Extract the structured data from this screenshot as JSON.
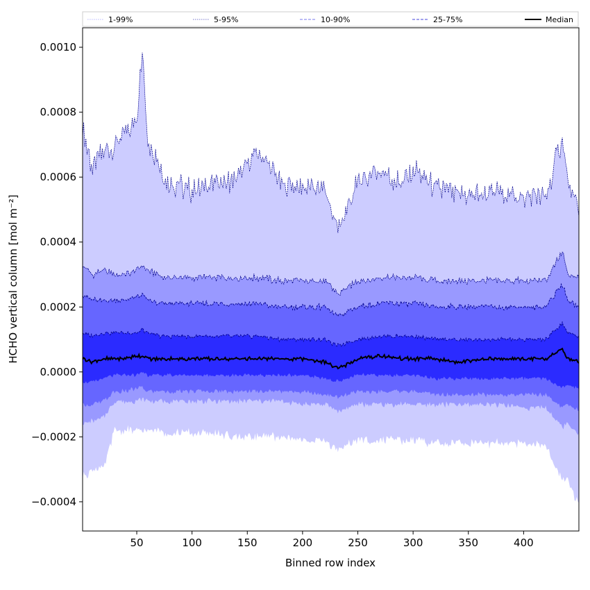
{
  "chart_data": {
    "type": "area",
    "xlabel": "Binned row index",
    "ylabel": "HCHO vertical column [mol m⁻²]",
    "xlim": [
      1,
      450
    ],
    "ylim": [
      -0.00049,
      0.00106
    ],
    "xticks": [
      50,
      100,
      150,
      200,
      250,
      300,
      350,
      400
    ],
    "xtick_labels": [
      "50",
      "100",
      "150",
      "200",
      "250",
      "300",
      "350",
      "400"
    ],
    "yticks": [
      -0.0004,
      -0.0002,
      0.0,
      0.0002,
      0.0004,
      0.0006,
      0.0008,
      0.001
    ],
    "ytick_labels": [
      "−0.0004",
      "−0.0002",
      "0.0000",
      "0.0002",
      "0.0004",
      "0.0006",
      "0.0008",
      "0.0010"
    ],
    "grid": false,
    "legend_position": "top",
    "colors": {
      "band_1_99": "#ccccff",
      "band_5_95": "#9999ff",
      "band_10_90": "#6666ff",
      "band_25_75": "#2b2bff",
      "line_5_95": "#00008b",
      "median": "#000000"
    },
    "legend": [
      {
        "label": "1-99%",
        "style": "dotted-light"
      },
      {
        "label": "5-95%",
        "style": "dotted-dark"
      },
      {
        "label": "10-90%",
        "style": "dashed-light"
      },
      {
        "label": "25-75%",
        "style": "dashed-dark"
      },
      {
        "label": "Median",
        "style": "solid"
      }
    ],
    "profile_x": [
      1,
      10,
      20,
      30,
      40,
      50,
      55,
      60,
      70,
      80,
      90,
      100,
      120,
      140,
      160,
      180,
      200,
      220,
      232,
      250,
      270,
      290,
      300,
      320,
      340,
      360,
      380,
      400,
      420,
      435,
      440,
      450
    ],
    "series": [
      {
        "name": "p99",
        "values": [
          0.00075,
          0.00062,
          0.00068,
          0.0007,
          0.00074,
          0.00078,
          0.00098,
          0.00072,
          0.00064,
          0.00058,
          0.00057,
          0.00056,
          0.00058,
          0.00059,
          0.00068,
          0.00058,
          0.00057,
          0.00056,
          0.00044,
          0.00058,
          0.00062,
          0.00058,
          0.00062,
          0.00057,
          0.00054,
          0.00055,
          0.00055,
          0.00054,
          0.00054,
          0.00072,
          0.00059,
          0.00049
        ]
      },
      {
        "name": "p95",
        "values": [
          0.00033,
          0.0003,
          0.00031,
          0.0003,
          0.0003,
          0.00031,
          0.00033,
          0.00031,
          0.0003,
          0.00029,
          0.00029,
          0.00029,
          0.00029,
          0.00029,
          0.00029,
          0.00028,
          0.00028,
          0.00028,
          0.00024,
          0.00028,
          0.00029,
          0.00029,
          0.00029,
          0.00028,
          0.00028,
          0.00028,
          0.00028,
          0.00028,
          0.00028,
          0.00037,
          0.0003,
          0.00029
        ]
      },
      {
        "name": "p90",
        "values": [
          0.00024,
          0.00022,
          0.00022,
          0.00022,
          0.00022,
          0.00023,
          0.00024,
          0.00022,
          0.00021,
          0.00021,
          0.00021,
          0.00021,
          0.00021,
          0.00021,
          0.00021,
          0.0002,
          0.0002,
          0.0002,
          0.00017,
          0.0002,
          0.00021,
          0.00021,
          0.00021,
          0.0002,
          0.0002,
          0.0002,
          0.0002,
          0.0002,
          0.0002,
          0.00027,
          0.00022,
          0.0002
        ]
      },
      {
        "name": "p75",
        "values": [
          0.00012,
          0.00011,
          0.00012,
          0.00012,
          0.00012,
          0.00012,
          0.00013,
          0.00012,
          0.00011,
          0.00011,
          0.00011,
          0.00011,
          0.00011,
          0.00011,
          0.00011,
          0.0001,
          0.0001,
          0.0001,
          8e-05,
          0.0001,
          0.00011,
          0.00011,
          0.00011,
          0.0001,
          0.0001,
          0.0001,
          0.0001,
          0.0001,
          0.0001,
          0.00015,
          0.00012,
          0.00011
        ]
      },
      {
        "name": "p50",
        "values": [
          4e-05,
          3e-05,
          4e-05,
          4e-05,
          4e-05,
          5e-05,
          5e-05,
          4e-05,
          4e-05,
          4e-05,
          4e-05,
          4e-05,
          4e-05,
          4e-05,
          4e-05,
          4e-05,
          4e-05,
          3e-05,
          1e-05,
          4e-05,
          5e-05,
          4e-05,
          4e-05,
          4e-05,
          3e-05,
          4e-05,
          4e-05,
          4e-05,
          4e-05,
          7e-05,
          4e-05,
          3e-05
        ]
      },
      {
        "name": "p25",
        "values": [
          -3e-05,
          -3e-05,
          -2e-05,
          -1e-05,
          -1e-05,
          -1e-05,
          0.0,
          -1e-05,
          -1e-05,
          -1e-05,
          -1e-05,
          -1e-05,
          -1e-05,
          -1e-05,
          -1e-05,
          -1e-05,
          -1e-05,
          -2e-05,
          -3e-05,
          -1e-05,
          -1e-05,
          -1e-05,
          -1e-05,
          -2e-05,
          -2e-05,
          -2e-05,
          -2e-05,
          -2e-05,
          -2e-05,
          -5e-05,
          -4e-05,
          -5e-05
        ]
      },
      {
        "name": "p10",
        "values": [
          -0.0001,
          -0.0001,
          -9e-05,
          -6e-05,
          -6e-05,
          -5e-05,
          -5e-05,
          -6e-05,
          -6e-05,
          -6e-05,
          -6e-05,
          -6e-05,
          -6e-05,
          -6e-05,
          -6e-05,
          -6e-05,
          -6e-05,
          -7e-05,
          -8e-05,
          -6e-05,
          -6e-05,
          -6e-05,
          -6e-05,
          -7e-05,
          -7e-05,
          -7e-05,
          -7e-05,
          -7e-05,
          -7e-05,
          -0.00011,
          -0.0001,
          -0.00012
        ]
      },
      {
        "name": "p5",
        "values": [
          -0.00016,
          -0.00015,
          -0.00014,
          -9e-05,
          -9e-05,
          -9e-05,
          -8e-05,
          -9e-05,
          -9e-05,
          -9e-05,
          -9e-05,
          -9e-05,
          -9e-05,
          -9e-05,
          -9e-05,
          -9e-05,
          -0.0001,
          -0.0001,
          -0.00012,
          -0.0001,
          -0.0001,
          -0.0001,
          -0.0001,
          -0.0001,
          -0.0001,
          -0.0001,
          -0.0001,
          -0.00011,
          -0.00011,
          -0.00017,
          -0.00016,
          -0.00019
        ]
      },
      {
        "name": "p1",
        "values": [
          -0.00032,
          -0.0003,
          -0.0003,
          -0.00018,
          -0.00018,
          -0.00018,
          -0.00018,
          -0.00018,
          -0.00018,
          -0.00019,
          -0.00019,
          -0.00019,
          -0.00019,
          -0.0002,
          -0.0002,
          -0.0002,
          -0.00021,
          -0.00021,
          -0.00024,
          -0.00021,
          -0.00021,
          -0.00021,
          -0.00021,
          -0.00022,
          -0.00022,
          -0.00022,
          -0.00022,
          -0.00022,
          -0.00023,
          -0.00033,
          -0.00033,
          -0.00041
        ]
      }
    ]
  }
}
